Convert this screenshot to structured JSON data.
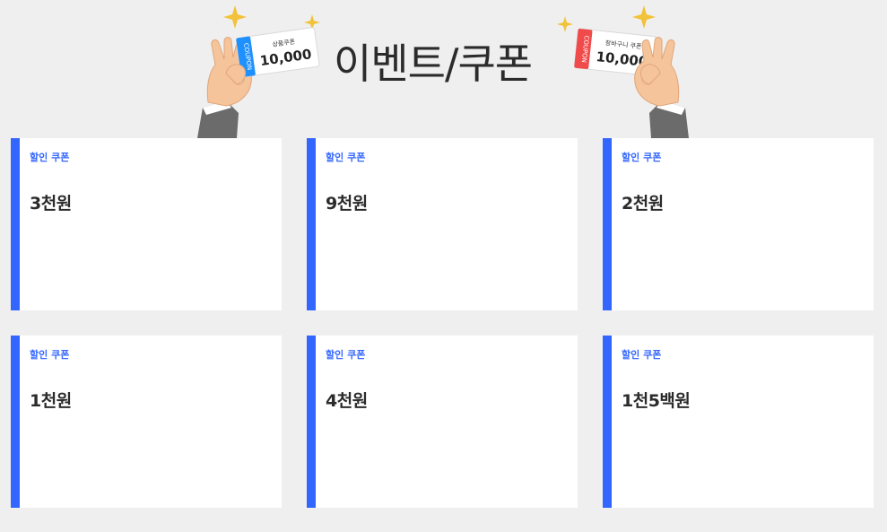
{
  "header": {
    "title": "이벤트/쿠폰",
    "left_ticket": {
      "label": "상품쿠폰",
      "amount": "10,000",
      "stub_text": "COUPON",
      "stub_color": "#1e90ff"
    },
    "right_ticket": {
      "label": "장바구니 쿠폰",
      "amount": "10,000",
      "stub_text": "COUPON",
      "stub_color": "#f04a4a"
    }
  },
  "colors": {
    "accent": "#3366ff",
    "background": "#efefef",
    "card": "#ffffff",
    "text": "#2b2b2b"
  },
  "coupons": [
    {
      "type": "할인 쿠폰",
      "amount": "3천원"
    },
    {
      "type": "할인 쿠폰",
      "amount": "9천원"
    },
    {
      "type": "할인 쿠폰",
      "amount": "2천원"
    },
    {
      "type": "할인 쿠폰",
      "amount": "1천원"
    },
    {
      "type": "할인 쿠폰",
      "amount": "4천원"
    },
    {
      "type": "할인 쿠폰",
      "amount": "1천5백원"
    }
  ]
}
